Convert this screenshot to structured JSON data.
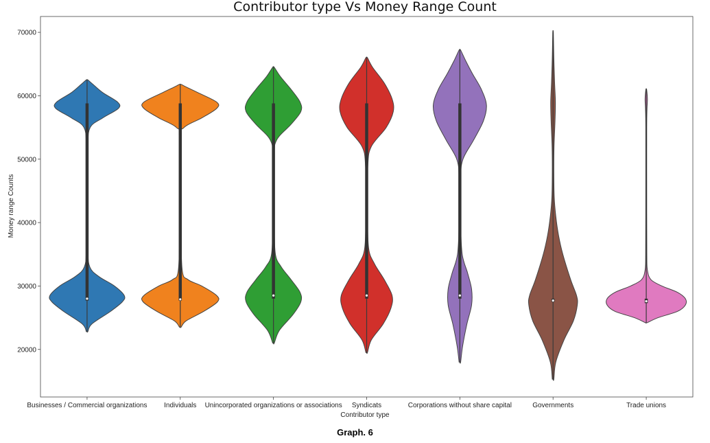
{
  "caption": "Graph. 6",
  "chart_data": {
    "type": "violin",
    "title": "Contributor type Vs Money Range Count",
    "xlabel": "Contributor type",
    "ylabel": "Money range Counts",
    "ylim": [
      12500,
      72500
    ],
    "yticks": [
      20000,
      30000,
      40000,
      50000,
      60000,
      70000
    ],
    "categories": [
      "Businesses / Commercial organizations",
      "Individuals",
      "Unincorporated organizations or associations",
      "Syndicats",
      "Corporations without share capital",
      "Governments",
      "Trade unions"
    ],
    "colors": [
      "#2f78b3",
      "#f0821e",
      "#2f9e34",
      "#d1302b",
      "#9372bb",
      "#8a5446",
      "#e07ac0"
    ],
    "grid": false,
    "legend": "none",
    "violins": [
      {
        "range": [
          22800,
          62500
        ],
        "median": 28000,
        "q1": 27700,
        "q3": 58800,
        "profile": [
          [
            22800,
            0.02
          ],
          [
            24000,
            0.12
          ],
          [
            26000,
            0.6
          ],
          [
            27500,
            0.9
          ],
          [
            28500,
            0.95
          ],
          [
            30000,
            0.7
          ],
          [
            31500,
            0.3
          ],
          [
            33000,
            0.07
          ],
          [
            36000,
            0.02
          ],
          [
            45000,
            0.015
          ],
          [
            52000,
            0.02
          ],
          [
            55000,
            0.08
          ],
          [
            56500,
            0.4
          ],
          [
            58000,
            0.8
          ],
          [
            59000,
            0.78
          ],
          [
            60500,
            0.4
          ],
          [
            61800,
            0.15
          ],
          [
            62500,
            0.02
          ]
        ]
      },
      {
        "range": [
          23500,
          61800
        ],
        "median": 27900,
        "q1": 27700,
        "q3": 58800,
        "profile": [
          [
            23500,
            0.02
          ],
          [
            24500,
            0.15
          ],
          [
            26000,
            0.6
          ],
          [
            27500,
            0.95
          ],
          [
            28500,
            0.93
          ],
          [
            30000,
            0.55
          ],
          [
            31000,
            0.2
          ],
          [
            32500,
            0.05
          ],
          [
            40000,
            0.015
          ],
          [
            53000,
            0.02
          ],
          [
            55000,
            0.1
          ],
          [
            56500,
            0.55
          ],
          [
            58000,
            0.93
          ],
          [
            59000,
            0.93
          ],
          [
            60500,
            0.45
          ],
          [
            61300,
            0.18
          ],
          [
            61800,
            0.02
          ]
        ]
      },
      {
        "range": [
          21000,
          64500
        ],
        "median": 28500,
        "q1": 28000,
        "q3": 58800,
        "profile": [
          [
            21000,
            0.02
          ],
          [
            23000,
            0.15
          ],
          [
            25500,
            0.5
          ],
          [
            27500,
            0.7
          ],
          [
            29000,
            0.68
          ],
          [
            31000,
            0.45
          ],
          [
            33000,
            0.2
          ],
          [
            35000,
            0.05
          ],
          [
            40000,
            0.02
          ],
          [
            50000,
            0.02
          ],
          [
            53000,
            0.08
          ],
          [
            55500,
            0.45
          ],
          [
            57500,
            0.7
          ],
          [
            59000,
            0.68
          ],
          [
            61000,
            0.45
          ],
          [
            63000,
            0.18
          ],
          [
            64500,
            0.02
          ]
        ]
      },
      {
        "range": [
          19500,
          66000
        ],
        "median": 28500,
        "q1": 28000,
        "q3": 58800,
        "profile": [
          [
            19500,
            0.02
          ],
          [
            21500,
            0.12
          ],
          [
            24000,
            0.42
          ],
          [
            26500,
            0.62
          ],
          [
            28500,
            0.65
          ],
          [
            31000,
            0.45
          ],
          [
            33500,
            0.2
          ],
          [
            36000,
            0.05
          ],
          [
            42000,
            0.02
          ],
          [
            49000,
            0.03
          ],
          [
            52000,
            0.12
          ],
          [
            55000,
            0.5
          ],
          [
            57500,
            0.68
          ],
          [
            59500,
            0.65
          ],
          [
            62000,
            0.45
          ],
          [
            64500,
            0.15
          ],
          [
            66000,
            0.02
          ]
        ]
      },
      {
        "range": [
          18000,
          67200
        ],
        "median": 28500,
        "q1": 28000,
        "q3": 58800,
        "profile": [
          [
            18000,
            0.02
          ],
          [
            20500,
            0.07
          ],
          [
            24000,
            0.18
          ],
          [
            27000,
            0.3
          ],
          [
            29500,
            0.3
          ],
          [
            32000,
            0.2
          ],
          [
            35000,
            0.06
          ],
          [
            40000,
            0.02
          ],
          [
            47000,
            0.02
          ],
          [
            50000,
            0.08
          ],
          [
            53000,
            0.35
          ],
          [
            56000,
            0.6
          ],
          [
            58500,
            0.68
          ],
          [
            61000,
            0.55
          ],
          [
            63500,
            0.32
          ],
          [
            65500,
            0.15
          ],
          [
            67200,
            0.02
          ]
        ]
      },
      {
        "range": [
          15300,
          70000
        ],
        "median": 27700,
        "q1": 27500,
        "q3": 28000,
        "profile": [
          [
            15300,
            0.02
          ],
          [
            18000,
            0.07
          ],
          [
            21500,
            0.28
          ],
          [
            24500,
            0.52
          ],
          [
            27000,
            0.62
          ],
          [
            28500,
            0.6
          ],
          [
            31000,
            0.45
          ],
          [
            35000,
            0.25
          ],
          [
            38000,
            0.14
          ],
          [
            41000,
            0.07
          ],
          [
            44000,
            0.03
          ],
          [
            48000,
            0.02
          ],
          [
            52000,
            0.025
          ],
          [
            56000,
            0.05
          ],
          [
            59000,
            0.06
          ],
          [
            62000,
            0.04
          ],
          [
            66000,
            0.02
          ],
          [
            70000,
            0.008
          ]
        ]
      },
      {
        "range": [
          24200,
          61000
        ],
        "median": 27600,
        "q1": 27300,
        "q3": 28000,
        "profile": [
          [
            24200,
            0.02
          ],
          [
            25000,
            0.3
          ],
          [
            26000,
            0.8
          ],
          [
            27000,
            1.0
          ],
          [
            28000,
            1.0
          ],
          [
            29000,
            0.8
          ],
          [
            30000,
            0.4
          ],
          [
            31000,
            0.12
          ],
          [
            32500,
            0.03
          ],
          [
            35000,
            0.015
          ],
          [
            45000,
            0.012
          ],
          [
            55000,
            0.012
          ],
          [
            58000,
            0.02
          ],
          [
            59500,
            0.03
          ],
          [
            61000,
            0.01
          ]
        ]
      }
    ]
  }
}
